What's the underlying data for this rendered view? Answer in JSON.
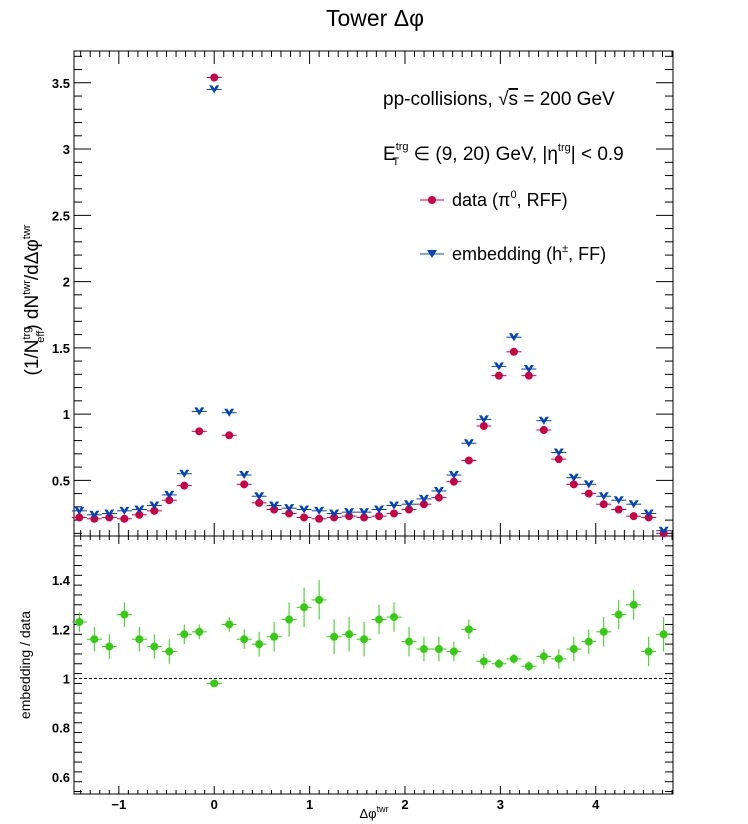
{
  "chart_data": [
    {
      "type": "scatter",
      "title": "Tower Δφ",
      "ylabel": "",
      "ylim": [
        0.08,
        3.74
      ],
      "xlim": [
        -1.47,
        4.81
      ],
      "yticks": [
        0.5,
        1,
        1.5,
        2,
        2.5,
        3,
        3.5
      ],
      "ytick_labels": [
        "0.5",
        "1",
        "1.5",
        "2",
        "2.5",
        "3",
        "3.5"
      ],
      "grid": false,
      "legend_position": "top-right",
      "annotations": {
        "collision_line": "pp-collisions, √s = 200 GeV",
        "trigger_line": "Eᵀᵣᵍ ∈ (9, 20) GeV, |ηᵗʳᵍ| < 0.9"
      },
      "x": [
        -1.414,
        -1.257,
        -1.1,
        -0.942,
        -0.785,
        -0.628,
        -0.471,
        -0.314,
        -0.157,
        0.0,
        0.157,
        0.314,
        0.471,
        0.628,
        0.785,
        0.942,
        1.1,
        1.257,
        1.414,
        1.571,
        1.728,
        1.885,
        2.042,
        2.199,
        2.356,
        2.513,
        2.67,
        2.827,
        2.985,
        3.142,
        3.299,
        3.456,
        3.613,
        3.77,
        3.927,
        4.084,
        4.241,
        4.398,
        4.555,
        4.712
      ],
      "series": [
        {
          "name": "data (π⁰, RFF)",
          "color": "#cc0044",
          "marker": "circle",
          "values": [
            0.22,
            0.21,
            0.22,
            0.21,
            0.24,
            0.27,
            0.35,
            0.46,
            0.87,
            3.54,
            0.84,
            0.47,
            0.33,
            0.28,
            0.25,
            0.22,
            0.21,
            0.22,
            0.23,
            0.22,
            0.23,
            0.25,
            0.28,
            0.32,
            0.37,
            0.49,
            0.65,
            0.91,
            1.29,
            1.47,
            1.29,
            0.88,
            0.66,
            0.47,
            0.4,
            0.32,
            0.28,
            0.23,
            0.22,
            0.1
          ]
        },
        {
          "name": "embedding (h±, FF)",
          "color": "#0044bb",
          "marker": "triangle-down",
          "values": [
            0.27,
            0.24,
            0.25,
            0.27,
            0.28,
            0.31,
            0.39,
            0.55,
            1.02,
            3.45,
            1.01,
            0.54,
            0.38,
            0.31,
            0.29,
            0.28,
            0.27,
            0.25,
            0.26,
            0.26,
            0.28,
            0.31,
            0.32,
            0.36,
            0.42,
            0.54,
            0.78,
            0.96,
            1.36,
            1.58,
            1.34,
            0.95,
            0.71,
            0.52,
            0.47,
            0.38,
            0.35,
            0.32,
            0.25,
            0.12
          ]
        }
      ]
    },
    {
      "type": "scatter",
      "ylabel": "embedding / data",
      "xlabel": "Δφᵗʷʳ",
      "xlim": [
        -1.47,
        4.81
      ],
      "ylim": [
        0.53,
        1.58
      ],
      "xticks": [
        -1,
        0,
        1,
        2,
        3,
        4
      ],
      "xtick_labels": [
        "−1",
        "0",
        "1",
        "2",
        "3",
        "4"
      ],
      "yticks": [
        0.6,
        0.8,
        1.0,
        1.2,
        1.4
      ],
      "ytick_labels": [
        "0.6",
        "0.8",
        "1",
        "1.2",
        "1.4"
      ],
      "reference_line": 1.0,
      "grid": false,
      "x": [
        -1.414,
        -1.257,
        -1.1,
        -0.942,
        -0.785,
        -0.628,
        -0.471,
        -0.314,
        -0.157,
        0.0,
        0.157,
        0.314,
        0.471,
        0.628,
        0.785,
        0.942,
        1.1,
        1.257,
        1.414,
        1.571,
        1.728,
        1.885,
        2.042,
        2.199,
        2.356,
        2.513,
        2.67,
        2.827,
        2.985,
        3.142,
        3.299,
        3.456,
        3.613,
        3.77,
        3.927,
        4.084,
        4.241,
        4.398,
        4.555,
        4.712
      ],
      "series": [
        {
          "color": "#33cc11",
          "marker": "circle",
          "values": [
            1.23,
            1.16,
            1.13,
            1.26,
            1.16,
            1.13,
            1.11,
            1.18,
            1.19,
            0.98,
            1.22,
            1.16,
            1.14,
            1.17,
            1.24,
            1.29,
            1.32,
            1.17,
            1.18,
            1.16,
            1.24,
            1.25,
            1.15,
            1.12,
            1.12,
            1.11,
            1.2,
            1.07,
            1.06,
            1.08,
            1.05,
            1.09,
            1.08,
            1.12,
            1.15,
            1.19,
            1.26,
            1.3,
            1.11,
            1.18
          ],
          "errors": [
            0.04,
            0.05,
            0.05,
            0.05,
            0.05,
            0.05,
            0.05,
            0.04,
            0.03,
            0.01,
            0.03,
            0.04,
            0.05,
            0.06,
            0.07,
            0.08,
            0.08,
            0.07,
            0.07,
            0.07,
            0.06,
            0.06,
            0.06,
            0.05,
            0.05,
            0.04,
            0.04,
            0.03,
            0.02,
            0.02,
            0.02,
            0.03,
            0.04,
            0.05,
            0.05,
            0.06,
            0.06,
            0.06,
            0.06,
            0.07
          ]
        }
      ]
    }
  ]
}
